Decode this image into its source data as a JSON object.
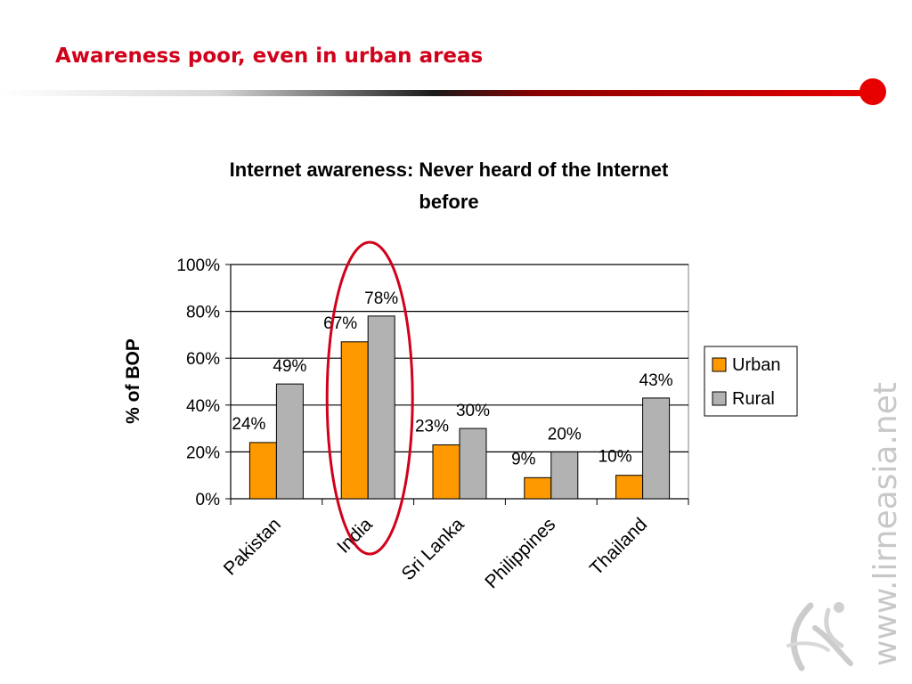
{
  "slide": {
    "title": "Awareness poor, even in urban areas",
    "accent_color": "#d0021b",
    "watermark": "www.lirneasia.net",
    "logo_icon": "lirneasia-figure-logo"
  },
  "chart_data": {
    "type": "bar",
    "title_lines": [
      "Internet awareness: Never heard of the Internet",
      "before"
    ],
    "xlabel": "",
    "ylabel": "% of BOP",
    "ylim": [
      0,
      100
    ],
    "yticks": [
      "0%",
      "20%",
      "40%",
      "60%",
      "80%",
      "100%"
    ],
    "grid": true,
    "legend_position": "right",
    "categories": [
      "Pakistan",
      "India",
      "Sri Lanka",
      "Philippines",
      "Thailand"
    ],
    "series": [
      {
        "name": "Urban",
        "values": [
          24,
          67,
          23,
          9,
          10
        ],
        "labels": [
          "24%",
          "67%",
          "23%",
          "9%",
          "10%"
        ],
        "color": "#ff9900"
      },
      {
        "name": "Rural",
        "values": [
          49,
          78,
          30,
          20,
          43
        ],
        "labels": [
          "49%",
          "78%",
          "30%",
          "20%",
          "43%"
        ],
        "color": "#b2b2b2"
      }
    ],
    "highlight": {
      "category": "India",
      "shape": "ellipse",
      "color": "#d0021b"
    }
  }
}
